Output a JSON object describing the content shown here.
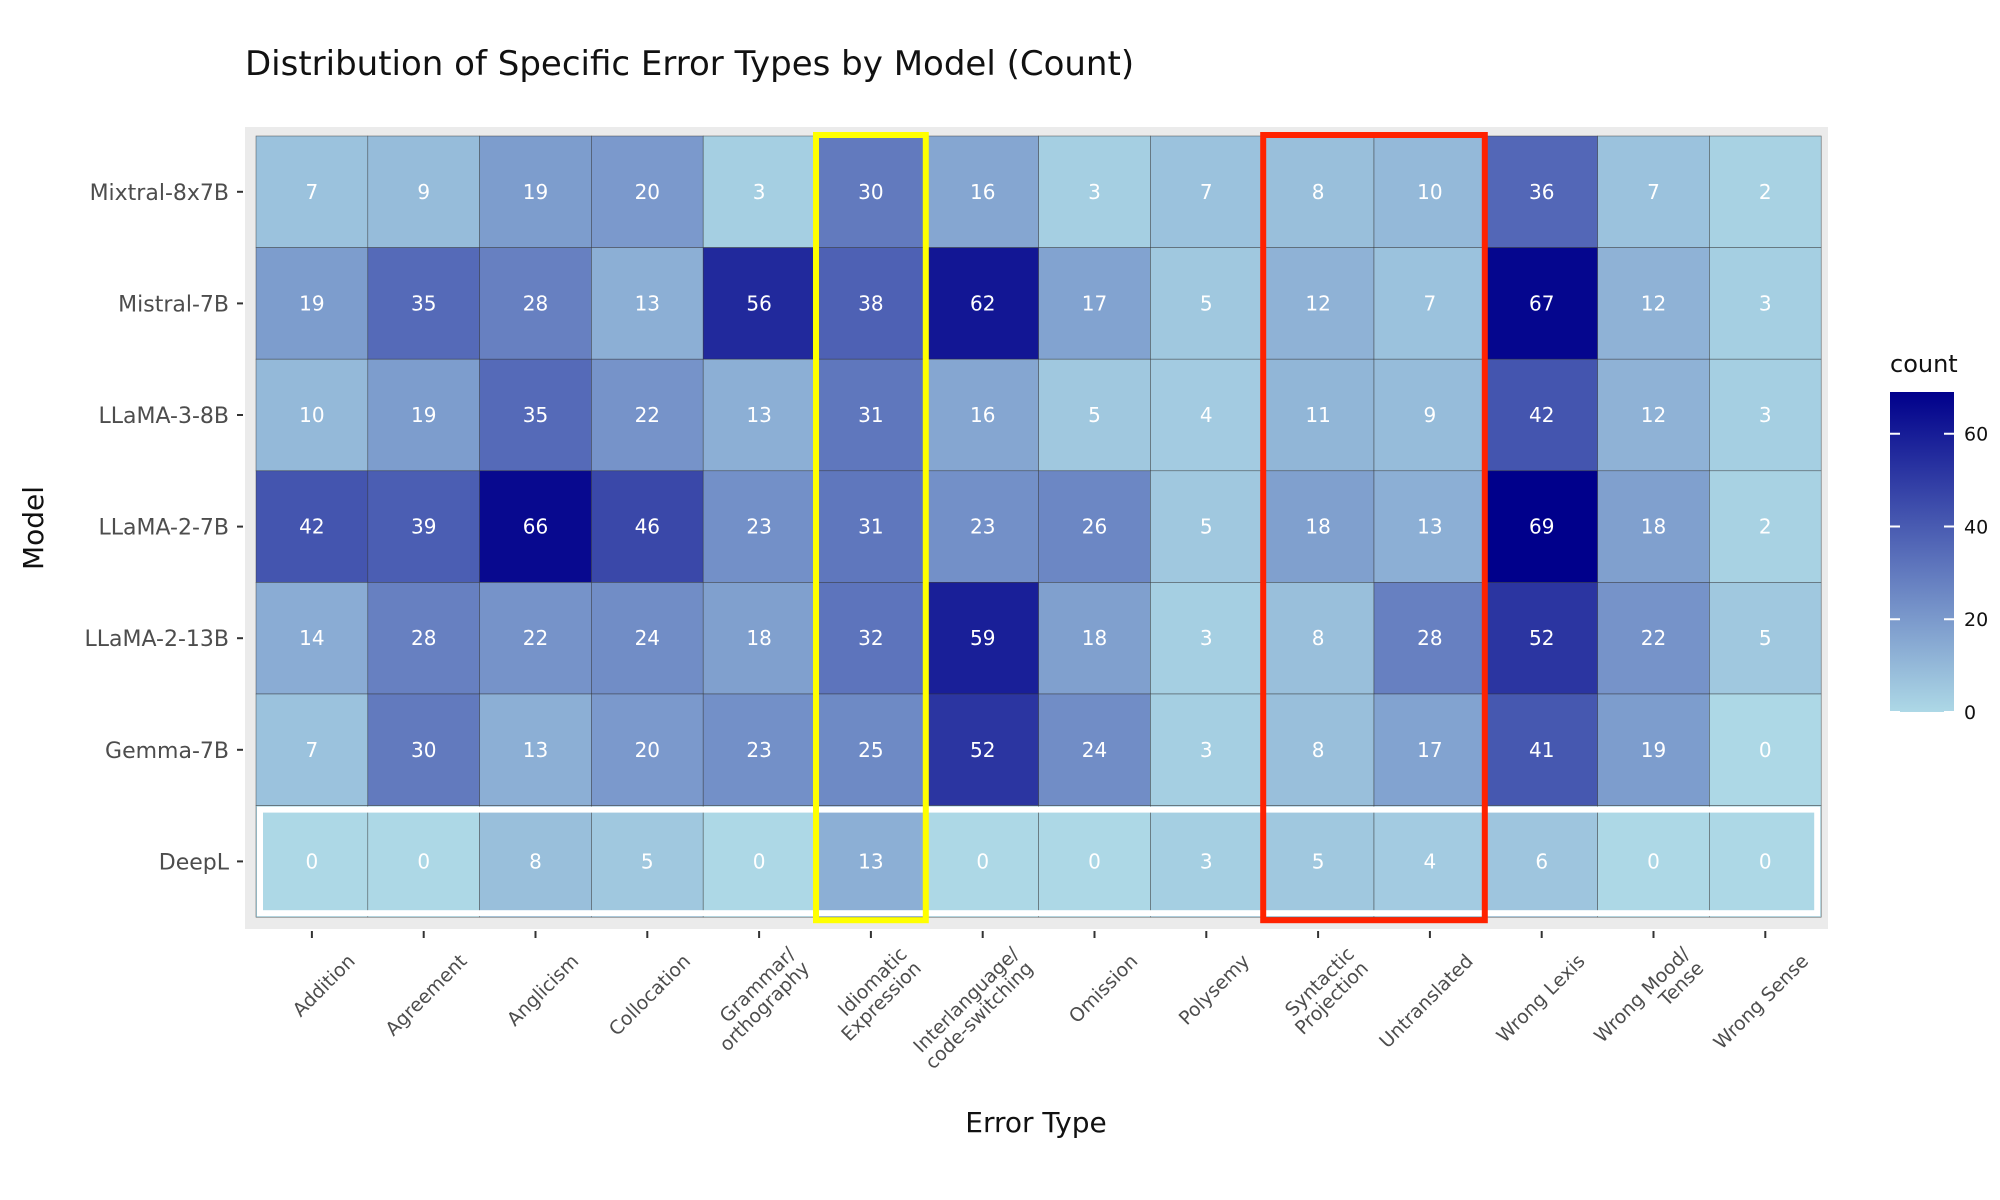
{
  "chart_data": {
    "type": "heatmap",
    "title": "Distribution of Specific Error Types by Model (Count)",
    "xlabel": "Error Type",
    "ylabel": "Model",
    "x_categories": [
      [
        "Addition"
      ],
      [
        "Agreement"
      ],
      [
        "Anglicism"
      ],
      [
        "Collocation"
      ],
      [
        "Grammar/",
        "orthography"
      ],
      [
        "Idiomatic",
        "Expression"
      ],
      [
        "Interlanguage/",
        "code-switching"
      ],
      [
        "Omission"
      ],
      [
        "Polysemy"
      ],
      [
        "Syntactic",
        "Projection"
      ],
      [
        "Untranslated"
      ],
      [
        "Wrong Lexis"
      ],
      [
        "Wrong Mood/",
        "Tense"
      ],
      [
        "Wrong Sense"
      ]
    ],
    "y_categories": [
      "Mixtral-8x7B",
      "Mistral-7B",
      "LLaMA-3-8B",
      "LLaMA-2-7B",
      "LLaMA-2-13B",
      "Gemma-7B",
      "DeepL"
    ],
    "values": [
      [
        7,
        9,
        19,
        20,
        3,
        30,
        16,
        3,
        7,
        8,
        10,
        36,
        7,
        2
      ],
      [
        19,
        35,
        28,
        13,
        56,
        38,
        62,
        17,
        5,
        12,
        7,
        67,
        12,
        3
      ],
      [
        10,
        19,
        35,
        22,
        13,
        31,
        16,
        5,
        4,
        11,
        9,
        42,
        12,
        3
      ],
      [
        42,
        39,
        66,
        46,
        23,
        31,
        23,
        26,
        5,
        18,
        13,
        69,
        18,
        2
      ],
      [
        14,
        28,
        22,
        24,
        18,
        32,
        59,
        18,
        3,
        8,
        28,
        52,
        22,
        5
      ],
      [
        7,
        30,
        13,
        20,
        23,
        25,
        52,
        24,
        3,
        8,
        17,
        41,
        19,
        0
      ],
      [
        0,
        0,
        8,
        5,
        0,
        13,
        0,
        0,
        3,
        5,
        4,
        6,
        0,
        0
      ]
    ],
    "color_range": [
      0,
      69
    ],
    "colors": {
      "low": "#add8e6",
      "high": "#00008b",
      "highlight_column": "#ffff00",
      "highlight_range": "#ff2200",
      "highlight_row": "#ffffff",
      "panel": "#ebebeb"
    },
    "legend": {
      "title": "count",
      "ticks": [
        0,
        20,
        40,
        60
      ],
      "position": "right"
    },
    "highlights": [
      {
        "type": "column",
        "columns": [
          5
        ],
        "color": "yellow"
      },
      {
        "type": "column",
        "columns": [
          9,
          10
        ],
        "color": "red"
      },
      {
        "type": "row",
        "rows": [
          6
        ],
        "color": "white"
      }
    ]
  }
}
